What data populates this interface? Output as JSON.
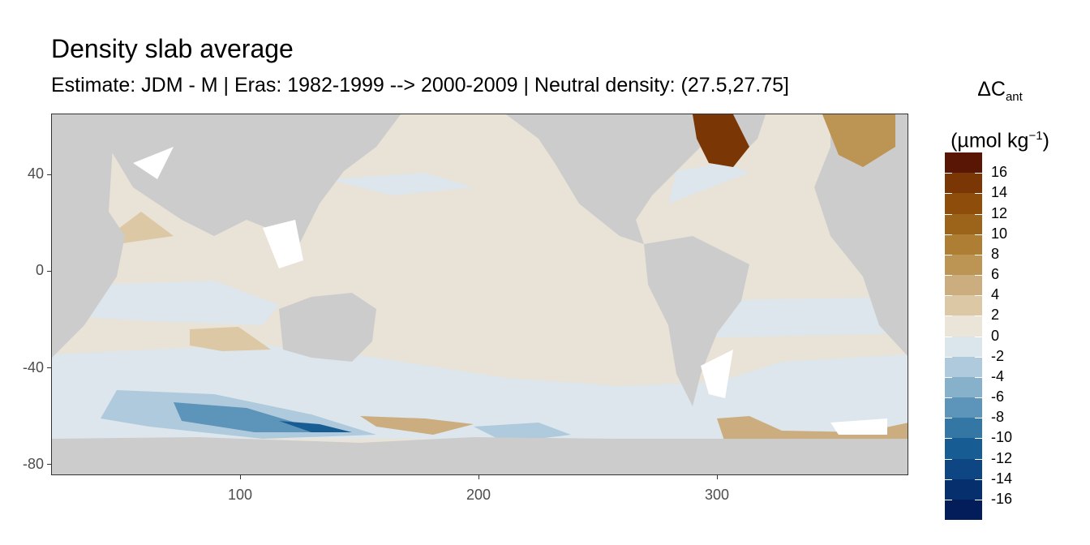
{
  "title": "Density slab average",
  "subtitle": "Estimate: JDM - M | Eras: 1982-1999 --> 2000-2009 | Neutral density: (27.5,27.75]",
  "legend": {
    "title_delta": "ΔC",
    "title_sub": "ant",
    "title_unit_pre": "(µmol kg",
    "title_unit_sup": "−1",
    "title_unit_post": ")",
    "labels": [
      "16",
      "14",
      "12",
      "10",
      "8",
      "6",
      "4",
      "2",
      "0",
      "-2",
      "-4",
      "-6",
      "-8",
      "-10",
      "-12",
      "-14",
      "-16"
    ],
    "colors": [
      "#5a1604",
      "#7a3605",
      "#8e4d0b",
      "#9c631b",
      "#ad7e33",
      "#bc9554",
      "#cbad7f",
      "#dcc8a4",
      "#ebe4d8",
      "#dbe5ec",
      "#afcadc",
      "#87b0cb",
      "#5d94b9",
      "#3476a4",
      "#175d93",
      "#0d4682",
      "#052f6d",
      "#021d5a"
    ]
  },
  "axes": {
    "y_ticks": [
      "40",
      "0",
      "-40",
      "-80"
    ],
    "x_ticks": [
      "100",
      "200",
      "300"
    ]
  },
  "colors": {
    "land": "#cccccc",
    "ocean_base": "#e8e1d6",
    "missing": "#ffffff"
  }
}
